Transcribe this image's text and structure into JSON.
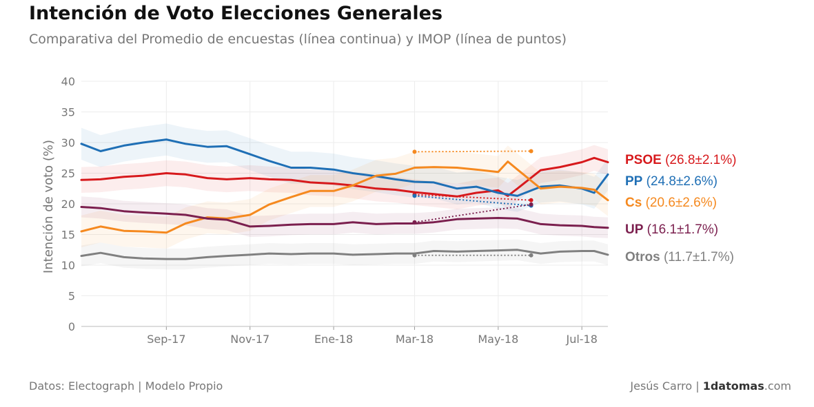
{
  "header": {
    "title": "Intención de Voto Elecciones Generales",
    "subtitle": "Comparativa del Promedio de encuestas (línea continua) y IMOP (línea de puntos)"
  },
  "footer": {
    "source": "Datos: Electograph | Modelo Propio",
    "author": "Jesús Carro |",
    "brand_bold": "1datomas",
    "brand_suffix": ".com"
  },
  "chart_data": {
    "type": "line",
    "ylabel": "Intención de voto (%)",
    "ylim": [
      0,
      40
    ],
    "yticks": [
      0,
      5,
      10,
      15,
      20,
      25,
      30,
      35,
      40
    ],
    "xlim": [
      "2017-07-01",
      "2018-07-20"
    ],
    "xticks": [
      {
        "label": "Sep-17",
        "date": "2017-09-01"
      },
      {
        "label": "Nov-17",
        "date": "2017-11-01"
      },
      {
        "label": "Ene-18",
        "date": "2018-01-01"
      },
      {
        "label": "Mar-18",
        "date": "2018-03-01"
      },
      {
        "label": "May-18",
        "date": "2018-05-01"
      },
      {
        "label": "Jul-18",
        "date": "2018-07-01"
      }
    ],
    "grid": true,
    "series": [
      {
        "name": "PSOE",
        "color": "#d7191c",
        "label_value": "(26.8±2.1%)",
        "band": 2.1,
        "x": [
          "2017-07-01",
          "2017-07-15",
          "2017-08-01",
          "2017-08-15",
          "2017-09-01",
          "2017-09-15",
          "2017-10-01",
          "2017-10-15",
          "2017-11-01",
          "2017-11-15",
          "2017-12-01",
          "2017-12-15",
          "2018-01-01",
          "2018-01-15",
          "2018-02-01",
          "2018-02-15",
          "2018-03-01",
          "2018-03-15",
          "2018-04-01",
          "2018-04-15",
          "2018-05-01",
          "2018-05-08",
          "2018-05-15",
          "2018-06-01",
          "2018-06-15",
          "2018-07-01",
          "2018-07-10",
          "2018-07-20"
        ],
        "y": [
          23.9,
          24.0,
          24.4,
          24.6,
          25.0,
          24.8,
          24.2,
          24.0,
          24.2,
          24.0,
          23.9,
          23.5,
          23.3,
          23.0,
          22.5,
          22.3,
          21.9,
          21.6,
          21.2,
          21.8,
          22.2,
          21.3,
          22.5,
          25.5,
          26.0,
          26.8,
          27.5,
          26.8
        ]
      },
      {
        "name": "PP",
        "color": "#1f6fb5",
        "label_value": "(24.8±2.6%)",
        "band": 2.6,
        "x": [
          "2017-07-01",
          "2017-07-15",
          "2017-08-01",
          "2017-08-15",
          "2017-09-01",
          "2017-09-15",
          "2017-10-01",
          "2017-10-15",
          "2017-11-01",
          "2017-11-15",
          "2017-12-01",
          "2017-12-15",
          "2018-01-01",
          "2018-01-15",
          "2018-02-01",
          "2018-02-15",
          "2018-03-01",
          "2018-03-15",
          "2018-04-01",
          "2018-04-15",
          "2018-05-01",
          "2018-05-15",
          "2018-06-01",
          "2018-06-15",
          "2018-07-01",
          "2018-07-10",
          "2018-07-20"
        ],
        "y": [
          29.8,
          28.6,
          29.5,
          30.0,
          30.5,
          29.8,
          29.3,
          29.4,
          28.1,
          27.0,
          25.9,
          25.9,
          25.6,
          25.0,
          24.5,
          24.0,
          23.6,
          23.5,
          22.5,
          22.8,
          21.8,
          21.3,
          22.8,
          23.0,
          22.5,
          21.8,
          24.8
        ]
      },
      {
        "name": "Cs",
        "color": "#f5891f",
        "label_value": "(20.6±2.6%)",
        "band": 2.6,
        "x": [
          "2017-07-01",
          "2017-07-15",
          "2017-08-01",
          "2017-08-15",
          "2017-09-01",
          "2017-09-15",
          "2017-10-01",
          "2017-10-15",
          "2017-11-01",
          "2017-11-15",
          "2017-12-01",
          "2017-12-15",
          "2018-01-01",
          "2018-01-15",
          "2018-02-01",
          "2018-02-15",
          "2018-03-01",
          "2018-03-15",
          "2018-04-01",
          "2018-04-15",
          "2018-05-01",
          "2018-05-08",
          "2018-05-15",
          "2018-06-01",
          "2018-06-15",
          "2018-07-01",
          "2018-07-10",
          "2018-07-20"
        ],
        "y": [
          15.5,
          16.3,
          15.6,
          15.5,
          15.3,
          16.8,
          17.8,
          17.6,
          18.2,
          19.9,
          21.1,
          22.1,
          22.1,
          23.0,
          24.6,
          24.9,
          25.9,
          26.0,
          25.9,
          25.6,
          25.2,
          26.9,
          25.6,
          22.5,
          22.8,
          22.6,
          22.3,
          20.6
        ]
      },
      {
        "name": "UP",
        "color": "#7b1f4e",
        "label_value": "(16.1±1.7%)",
        "band": 1.7,
        "x": [
          "2017-07-01",
          "2017-07-15",
          "2017-08-01",
          "2017-08-15",
          "2017-09-01",
          "2017-09-15",
          "2017-10-01",
          "2017-10-15",
          "2017-11-01",
          "2017-11-15",
          "2017-12-01",
          "2017-12-15",
          "2018-01-01",
          "2018-01-15",
          "2018-02-01",
          "2018-02-15",
          "2018-03-01",
          "2018-03-15",
          "2018-04-01",
          "2018-04-15",
          "2018-05-01",
          "2018-05-15",
          "2018-06-01",
          "2018-06-15",
          "2018-07-01",
          "2018-07-10",
          "2018-07-20"
        ],
        "y": [
          19.5,
          19.3,
          18.8,
          18.6,
          18.4,
          18.2,
          17.6,
          17.4,
          16.3,
          16.4,
          16.6,
          16.7,
          16.7,
          17.0,
          16.7,
          16.8,
          16.8,
          17.0,
          17.5,
          17.6,
          17.7,
          17.6,
          16.7,
          16.5,
          16.4,
          16.2,
          16.1
        ]
      },
      {
        "name": "Otros",
        "color": "#808080",
        "label_value": "(11.7±1.7%)",
        "band": 1.7,
        "x": [
          "2017-07-01",
          "2017-07-15",
          "2017-08-01",
          "2017-08-15",
          "2017-09-01",
          "2017-09-15",
          "2017-10-01",
          "2017-10-15",
          "2017-11-01",
          "2017-11-15",
          "2017-12-01",
          "2017-12-15",
          "2018-01-01",
          "2018-01-15",
          "2018-02-01",
          "2018-02-15",
          "2018-03-01",
          "2018-03-15",
          "2018-04-01",
          "2018-04-15",
          "2018-05-01",
          "2018-05-15",
          "2018-06-01",
          "2018-06-15",
          "2018-07-01",
          "2018-07-10",
          "2018-07-20"
        ],
        "y": [
          11.5,
          12.0,
          11.3,
          11.1,
          11.0,
          11.0,
          11.3,
          11.5,
          11.7,
          11.9,
          11.8,
          11.9,
          11.9,
          11.7,
          11.8,
          11.9,
          11.9,
          12.3,
          12.2,
          12.3,
          12.4,
          12.5,
          11.9,
          12.2,
          12.3,
          12.3,
          11.7
        ]
      }
    ],
    "imop": {
      "x": [
        "2018-03-01",
        "2018-05-25"
      ],
      "series": [
        {
          "name": "PSOE",
          "color": "#d7191c",
          "y": [
            21.5,
            20.6
          ]
        },
        {
          "name": "PP",
          "color": "#1f6fb5",
          "y": [
            21.3,
            19.7
          ]
        },
        {
          "name": "Cs",
          "color": "#f5891f",
          "y": [
            28.5,
            28.6
          ]
        },
        {
          "name": "UP",
          "color": "#7b1f4e",
          "y": [
            17.0,
            19.9
          ]
        },
        {
          "name": "Otros",
          "color": "#808080",
          "y": [
            11.6,
            11.6
          ]
        }
      ]
    }
  }
}
